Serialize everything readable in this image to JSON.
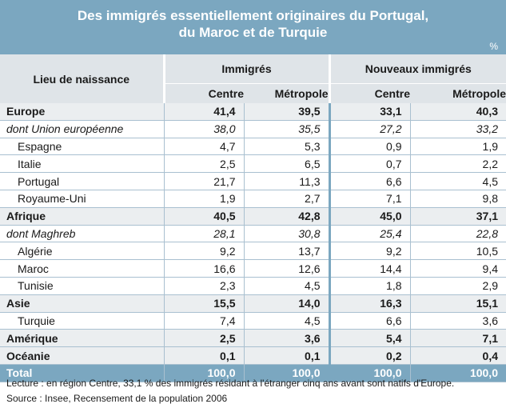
{
  "title": {
    "line1": "Des immigrés essentiellement originaires du Portugal,",
    "line2": "du Maroc et de Turquie",
    "unit": "%"
  },
  "header": {
    "lieu": "Lieu de naissance",
    "group1": "Immigrés",
    "group2": "Nouveaux immigrés",
    "sub_centre": "Centre",
    "sub_metropole": "Métropole"
  },
  "rows": [
    {
      "label": "Europe",
      "values": [
        "41,4",
        "39,5",
        "33,1",
        "40,3"
      ]
    },
    {
      "label": "dont Union européenne",
      "values": [
        "38,0",
        "35,5",
        "27,2",
        "33,2"
      ]
    },
    {
      "label": "Espagne",
      "values": [
        "4,7",
        "5,3",
        "0,9",
        "1,9"
      ]
    },
    {
      "label": "Italie",
      "values": [
        "2,5",
        "6,5",
        "0,7",
        "2,2"
      ]
    },
    {
      "label": "Portugal",
      "values": [
        "21,7",
        "11,3",
        "6,6",
        "4,5"
      ]
    },
    {
      "label": "Royaume-Uni",
      "values": [
        "1,9",
        "2,7",
        "7,1",
        "9,8"
      ]
    },
    {
      "label": "Afrique",
      "values": [
        "40,5",
        "42,8",
        "45,0",
        "37,1"
      ]
    },
    {
      "label": "dont Maghreb",
      "values": [
        "28,1",
        "30,8",
        "25,4",
        "22,8"
      ]
    },
    {
      "label": "Algérie",
      "values": [
        "9,2",
        "13,7",
        "9,2",
        "10,5"
      ]
    },
    {
      "label": "Maroc",
      "values": [
        "16,6",
        "12,6",
        "14,4",
        "9,4"
      ]
    },
    {
      "label": "Tunisie",
      "values": [
        "2,3",
        "4,5",
        "1,8",
        "2,9"
      ]
    },
    {
      "label": "Asie",
      "values": [
        "15,5",
        "14,0",
        "16,3",
        "15,1"
      ]
    },
    {
      "label": "Turquie",
      "values": [
        "7,4",
        "4,5",
        "6,6",
        "3,6"
      ]
    },
    {
      "label": "Amérique",
      "values": [
        "2,5",
        "3,6",
        "5,4",
        "7,1"
      ]
    },
    {
      "label": "Océanie",
      "values": [
        "0,1",
        "0,1",
        "0,2",
        "0,4"
      ]
    },
    {
      "label": "Total",
      "values": [
        "100,0",
        "100,0",
        "100,0",
        "100,0"
      ]
    }
  ],
  "notes": {
    "lecture": "Lecture : en région Centre, 33,1 % des immigrés résidant à l'étranger cinq ans avant sont natifs d'Europe.",
    "source": "Source : Insee, Recensement de la population 2006"
  },
  "colors": {
    "title_band": "#7ba7c0",
    "header_bg": "#dfe4e8",
    "region_bg": "#ebeef0",
    "grid_line": "#a9c0d0"
  }
}
